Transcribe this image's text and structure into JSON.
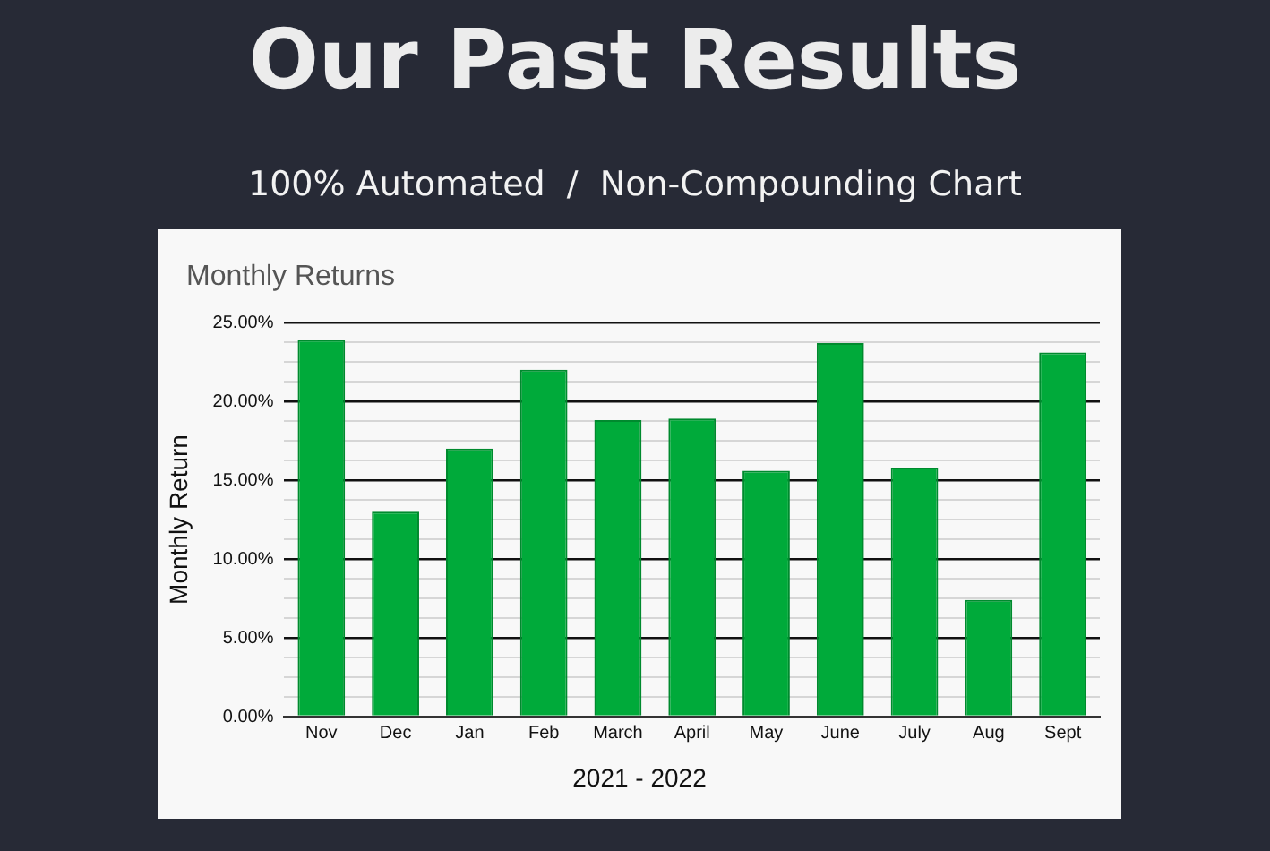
{
  "chart_data": {
    "type": "bar",
    "title": "Our Past Results",
    "subtitle": "100% Automated  /  Non-Compounding Chart",
    "annotations": [
      "Monthly Returns"
    ],
    "xlabel": "2021 - 2022",
    "ylabel": "Monthly Return",
    "categories": [
      "Nov",
      "Dec",
      "Jan",
      "Feb",
      "March",
      "April",
      "May",
      "June",
      "July",
      "Aug",
      "Sept"
    ],
    "values": [
      23.9,
      13.0,
      17.0,
      22.0,
      18.8,
      18.9,
      15.6,
      23.7,
      15.8,
      7.4,
      23.1
    ],
    "color": "#00aa3a",
    "ylim": [
      0,
      25
    ],
    "yticks": [
      {
        "value": 0,
        "label": "0.00%"
      },
      {
        "value": 1.25,
        "label": null
      },
      {
        "value": 2.5,
        "label": null
      },
      {
        "value": 3.75,
        "label": null
      },
      {
        "value": 5,
        "label": "5.00%"
      },
      {
        "value": 6.25,
        "label": null
      },
      {
        "value": 7.5,
        "label": null
      },
      {
        "value": 8.75,
        "label": null
      },
      {
        "value": 10,
        "label": "10.00%"
      },
      {
        "value": 11.25,
        "label": null
      },
      {
        "value": 12.5,
        "label": null
      },
      {
        "value": 13.75,
        "label": null
      },
      {
        "value": 15,
        "label": "15.00%"
      },
      {
        "value": 16.25,
        "label": null
      },
      {
        "value": 17.5,
        "label": null
      },
      {
        "value": 18.75,
        "label": null
      },
      {
        "value": 20,
        "label": "20.00%"
      },
      {
        "value": 21.25,
        "label": null
      },
      {
        "value": 22.5,
        "label": null
      },
      {
        "value": 23.75,
        "label": null
      },
      {
        "value": 25,
        "label": "25.00%"
      }
    ],
    "grid": "y",
    "legend": false
  }
}
